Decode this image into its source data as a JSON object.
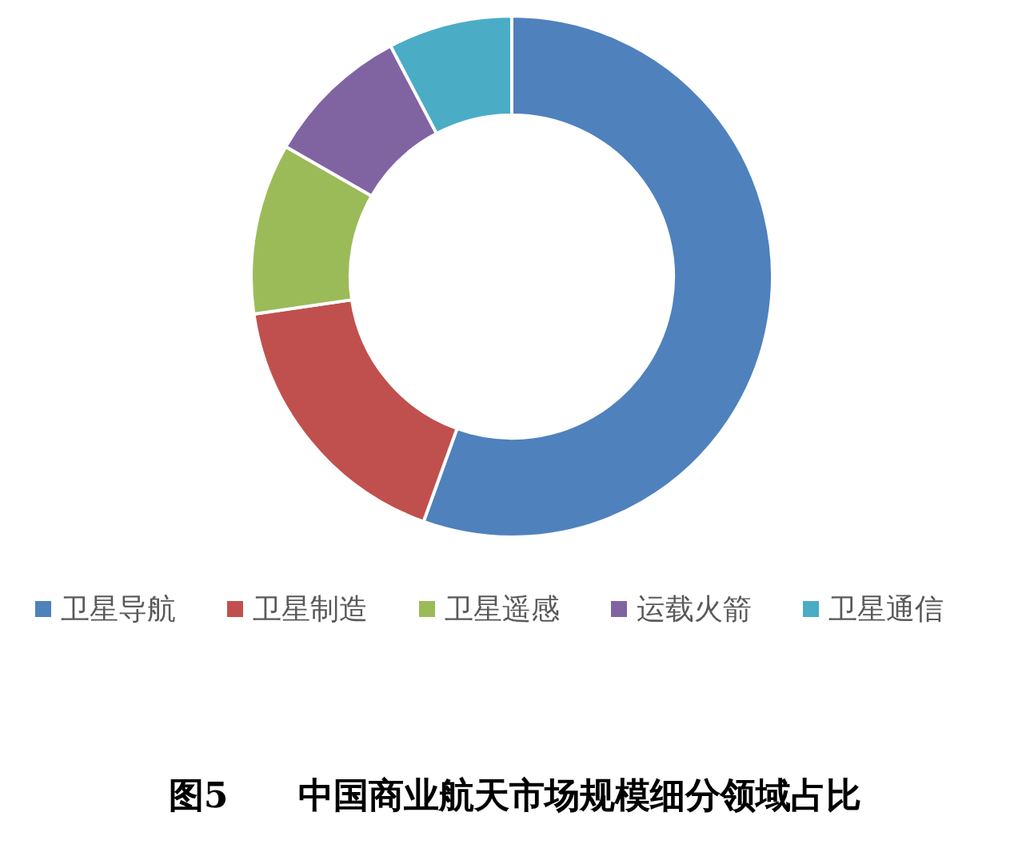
{
  "chart_data": {
    "type": "donut",
    "title": "图5　　中国商业航天市场规模细分领域占比",
    "categories": [
      "卫星导航",
      "卫星制造",
      "卫星遥感",
      "运载火箭",
      "卫星通信"
    ],
    "values": [
      55.5,
      17.2,
      10.6,
      9,
      7.7
    ],
    "colors": [
      "#4f81bd",
      "#c0504d",
      "#9bbb59",
      "#8064a2",
      "#4bacc6"
    ],
    "legend": "bottom"
  }
}
